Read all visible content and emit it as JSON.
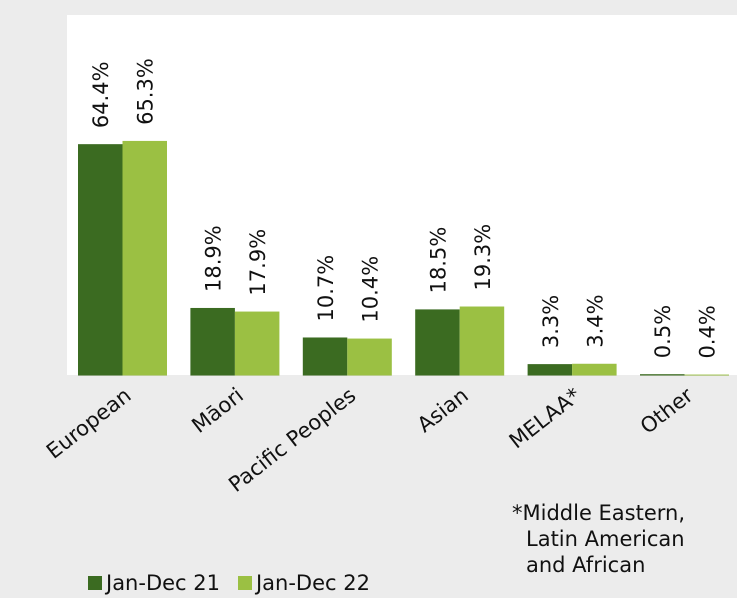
{
  "chart_data": {
    "type": "bar",
    "categories": [
      "European",
      "Māori",
      "Pacific Peoples",
      "Asian",
      "MELAA*",
      "Other"
    ],
    "series": [
      {
        "name": "Jan-Dec 21",
        "values": [
          64.4,
          18.9,
          10.7,
          18.5,
          3.3,
          0.5
        ],
        "labels": [
          "64.4%",
          "18.9%",
          "10.7%",
          "18.5%",
          "3.3%",
          "0.5%"
        ],
        "color": "#3b6b21"
      },
      {
        "name": "Jan-Dec 22",
        "values": [
          65.3,
          17.9,
          10.4,
          19.3,
          3.4,
          0.4
        ],
        "labels": [
          "65.3%",
          "17.9%",
          "10.4%",
          "19.3%",
          "3.4%",
          "0.4%"
        ],
        "color": "#9bc043"
      }
    ],
    "ylim": [
      0,
      100
    ],
    "grid": false,
    "legend_position": "bottom-left"
  },
  "footnote": {
    "lines": [
      "*Middle Eastern,",
      "Latin American",
      "and African"
    ]
  }
}
